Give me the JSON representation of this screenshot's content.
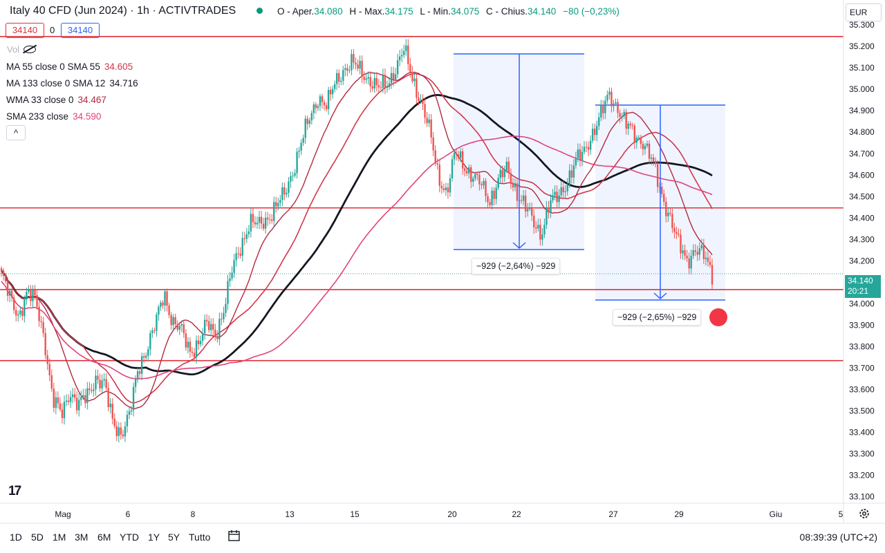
{
  "header": {
    "symbol": "Italy 40 CFD (Jun 2024) · 1h · ACTIVTRADES",
    "open_label": "O - Aper.",
    "open_value": "34.080",
    "high_label": "H - Max.",
    "high_value": "34.175",
    "low_label": "L - Min.",
    "low_value": "34.075",
    "close_label": "C - Chius.",
    "close_value": "34.140",
    "change": "−80 (−0,23%)",
    "currency": "EUR",
    "sell_price": "34140",
    "spread": "0",
    "buy_price": "34140",
    "volume_label": "Vol"
  },
  "indicators": [
    {
      "label": "MA 55 close 0 SMA 55",
      "value": "34.605",
      "color": "#d0364a"
    },
    {
      "label": "MA 133 close 0 SMA 12",
      "value": "34.716",
      "color": "#131722"
    },
    {
      "label": "WMA 33 close 0",
      "value": "34.467",
      "color": "#b2283e"
    },
    {
      "label": "SMA 233 close",
      "value": "34.590",
      "color": "#e0417a"
    }
  ],
  "collapse_label": "^",
  "measures": [
    {
      "text": "−929 (−2,64%) −929"
    },
    {
      "text": "−929 (−2,65%) −929"
    }
  ],
  "last_price": {
    "value": "34.140",
    "countdown": "20:21",
    "color": "#26a69a"
  },
  "bottom_bar": {
    "ranges": [
      "1D",
      "5D",
      "1M",
      "3M",
      "6M",
      "YTD",
      "1Y",
      "5Y",
      "Tutto"
    ],
    "time": "08:39:39 (UTC+2)"
  },
  "logo_text": "17",
  "chart_data": {
    "type": "candlestick",
    "ylim": [
      33.07,
      35.31
    ],
    "yticks": [
      "35.300",
      "35.200",
      "35.100",
      "35.000",
      "34.900",
      "34.800",
      "34.700",
      "34.600",
      "34.500",
      "34.400",
      "34.300",
      "34.200",
      "34.100",
      "34.000",
      "33.900",
      "33.800",
      "33.700",
      "33.600",
      "33.500",
      "33.400",
      "33.300",
      "33.200",
      "33.100"
    ],
    "xticks": [
      "Mag",
      "6",
      "8",
      "13",
      "15",
      "20",
      "22",
      "27",
      "29",
      "Giu",
      "5"
    ],
    "horizontal_lines": [
      35.246,
      34.447,
      34.066,
      33.735
    ],
    "close_path": [
      34.14,
      34.02,
      33.95,
      34.05,
      34.01,
      33.85,
      33.55,
      33.48,
      33.6,
      33.52,
      33.57,
      33.66,
      33.62,
      33.45,
      33.4,
      33.48,
      33.7,
      33.8,
      33.9,
      34.05,
      33.92,
      33.87,
      33.78,
      33.82,
      33.9,
      33.86,
      33.98,
      34.16,
      34.28,
      34.38,
      34.36,
      34.4,
      34.45,
      34.5,
      34.62,
      34.75,
      34.86,
      34.97,
      34.92,
      35.03,
      35.1,
      35.12,
      35.08,
      35.05,
      35.0,
      35.02,
      35.1,
      35.18,
      35.05,
      34.95,
      34.8,
      34.6,
      34.52,
      34.7,
      34.65,
      34.6,
      34.55,
      34.48,
      34.58,
      34.62,
      34.54,
      34.47,
      34.38,
      34.33,
      34.47,
      34.49,
      34.57,
      34.66,
      34.7,
      34.8,
      34.88,
      34.97,
      34.92,
      34.83,
      34.78,
      34.76,
      34.66,
      34.52,
      34.42,
      34.28,
      34.2,
      34.26,
      34.22,
      34.14
    ],
    "series": [
      {
        "name": "MA 55 close 0 SMA 55",
        "color": "#d0364a"
      },
      {
        "name": "MA 133 close 0 SMA 12",
        "color": "#131722"
      },
      {
        "name": "WMA 33 close 0",
        "color": "#b2283e"
      },
      {
        "name": "SMA 233 close",
        "color": "#e0417a"
      }
    ]
  }
}
